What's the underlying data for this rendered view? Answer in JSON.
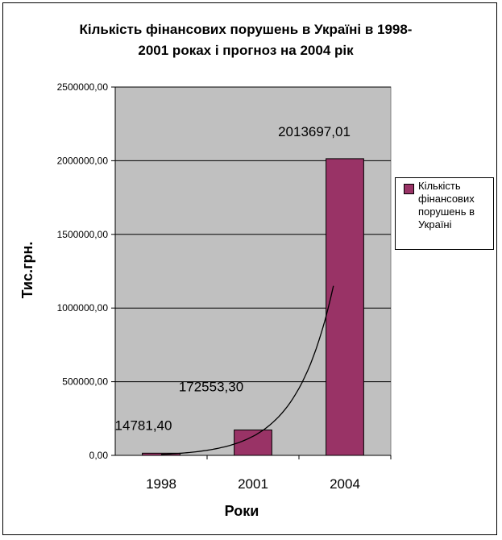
{
  "chart_data": {
    "type": "bar",
    "title_line1": "Кількість фінансових порушень в Україні в 1998-",
    "title_line2": "2001 роках і прогноз на 2004 рік",
    "xlabel": "Роки",
    "ylabel": "Тис.грн.",
    "categories": [
      "1998",
      "2001",
      "2004"
    ],
    "series": [
      {
        "name": "Кількість фінансових порушень в Україні",
        "values": [
          14781.4,
          172553.3,
          2013697.01
        ],
        "data_labels": [
          "14781,40",
          "172553,30",
          "2013697,01"
        ],
        "color": "#993366"
      }
    ],
    "ylim": [
      0,
      2500000
    ],
    "yticks": [
      0,
      500000,
      1000000,
      1500000,
      2000000,
      2500000
    ],
    "ytick_labels": [
      "0,00",
      "500000,00",
      "1000000,00",
      "1500000,00",
      "2000000,00",
      "2500000,00"
    ],
    "grid": true,
    "plot_background": "#c0c0c0",
    "trendline": {
      "type": "exponential",
      "color": "#000000"
    },
    "legend_position": "right"
  }
}
